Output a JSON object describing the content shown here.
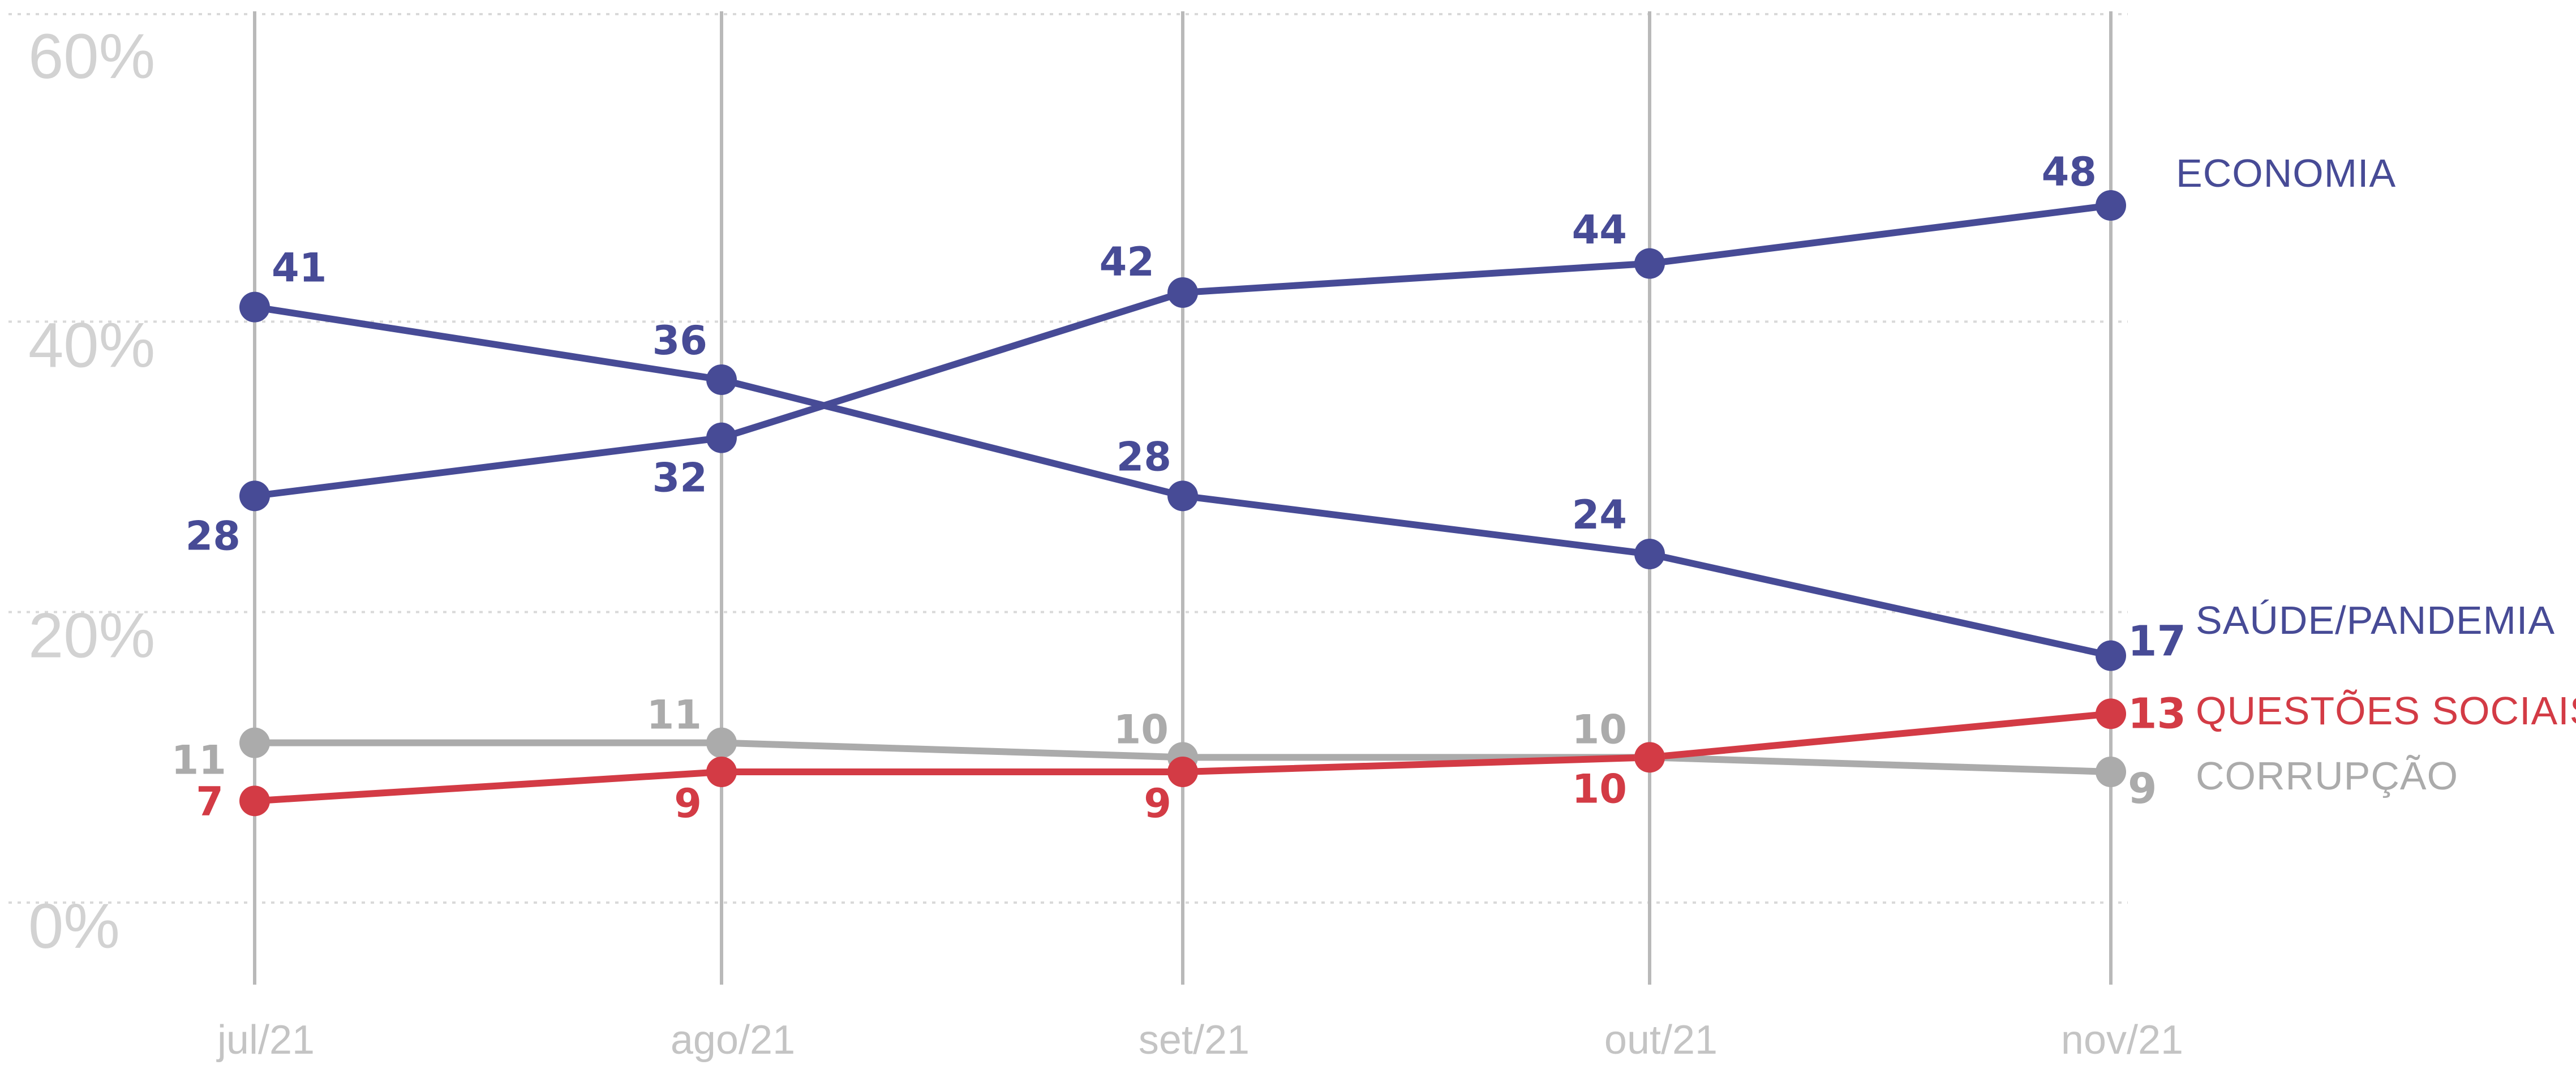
{
  "chart_data": {
    "type": "line",
    "categories": [
      "jul/21",
      "ago/21",
      "set/21",
      "out/21",
      "nov/21"
    ],
    "ylim": [
      0,
      60
    ],
    "yticks": [
      "0%",
      "20%",
      "40%",
      "60%"
    ],
    "grid": true,
    "series": [
      {
        "name": "ECONOMIA",
        "values": [
          28,
          32,
          42,
          44,
          48
        ],
        "color": "#474b96",
        "labels": [
          "28",
          "32",
          "42",
          "44",
          "48"
        ]
      },
      {
        "name": "SAÚDE/PANDEMIA",
        "values": [
          41,
          36,
          28,
          24,
          17
        ],
        "color": "#474b96",
        "labels": [
          "41",
          "36",
          "28",
          "24",
          "17"
        ]
      },
      {
        "name": "QUESTÕES SOCIAIS",
        "values": [
          7,
          9,
          9,
          10,
          13
        ],
        "color": "#d33b45",
        "labels": [
          "7",
          "9",
          "9",
          "10",
          "13"
        ]
      },
      {
        "name": "CORRUPÇÃO",
        "values": [
          11,
          11,
          10,
          10,
          9
        ],
        "color": "#ababab",
        "labels": [
          "11",
          "11",
          "10",
          "10",
          "9"
        ]
      }
    ]
  }
}
